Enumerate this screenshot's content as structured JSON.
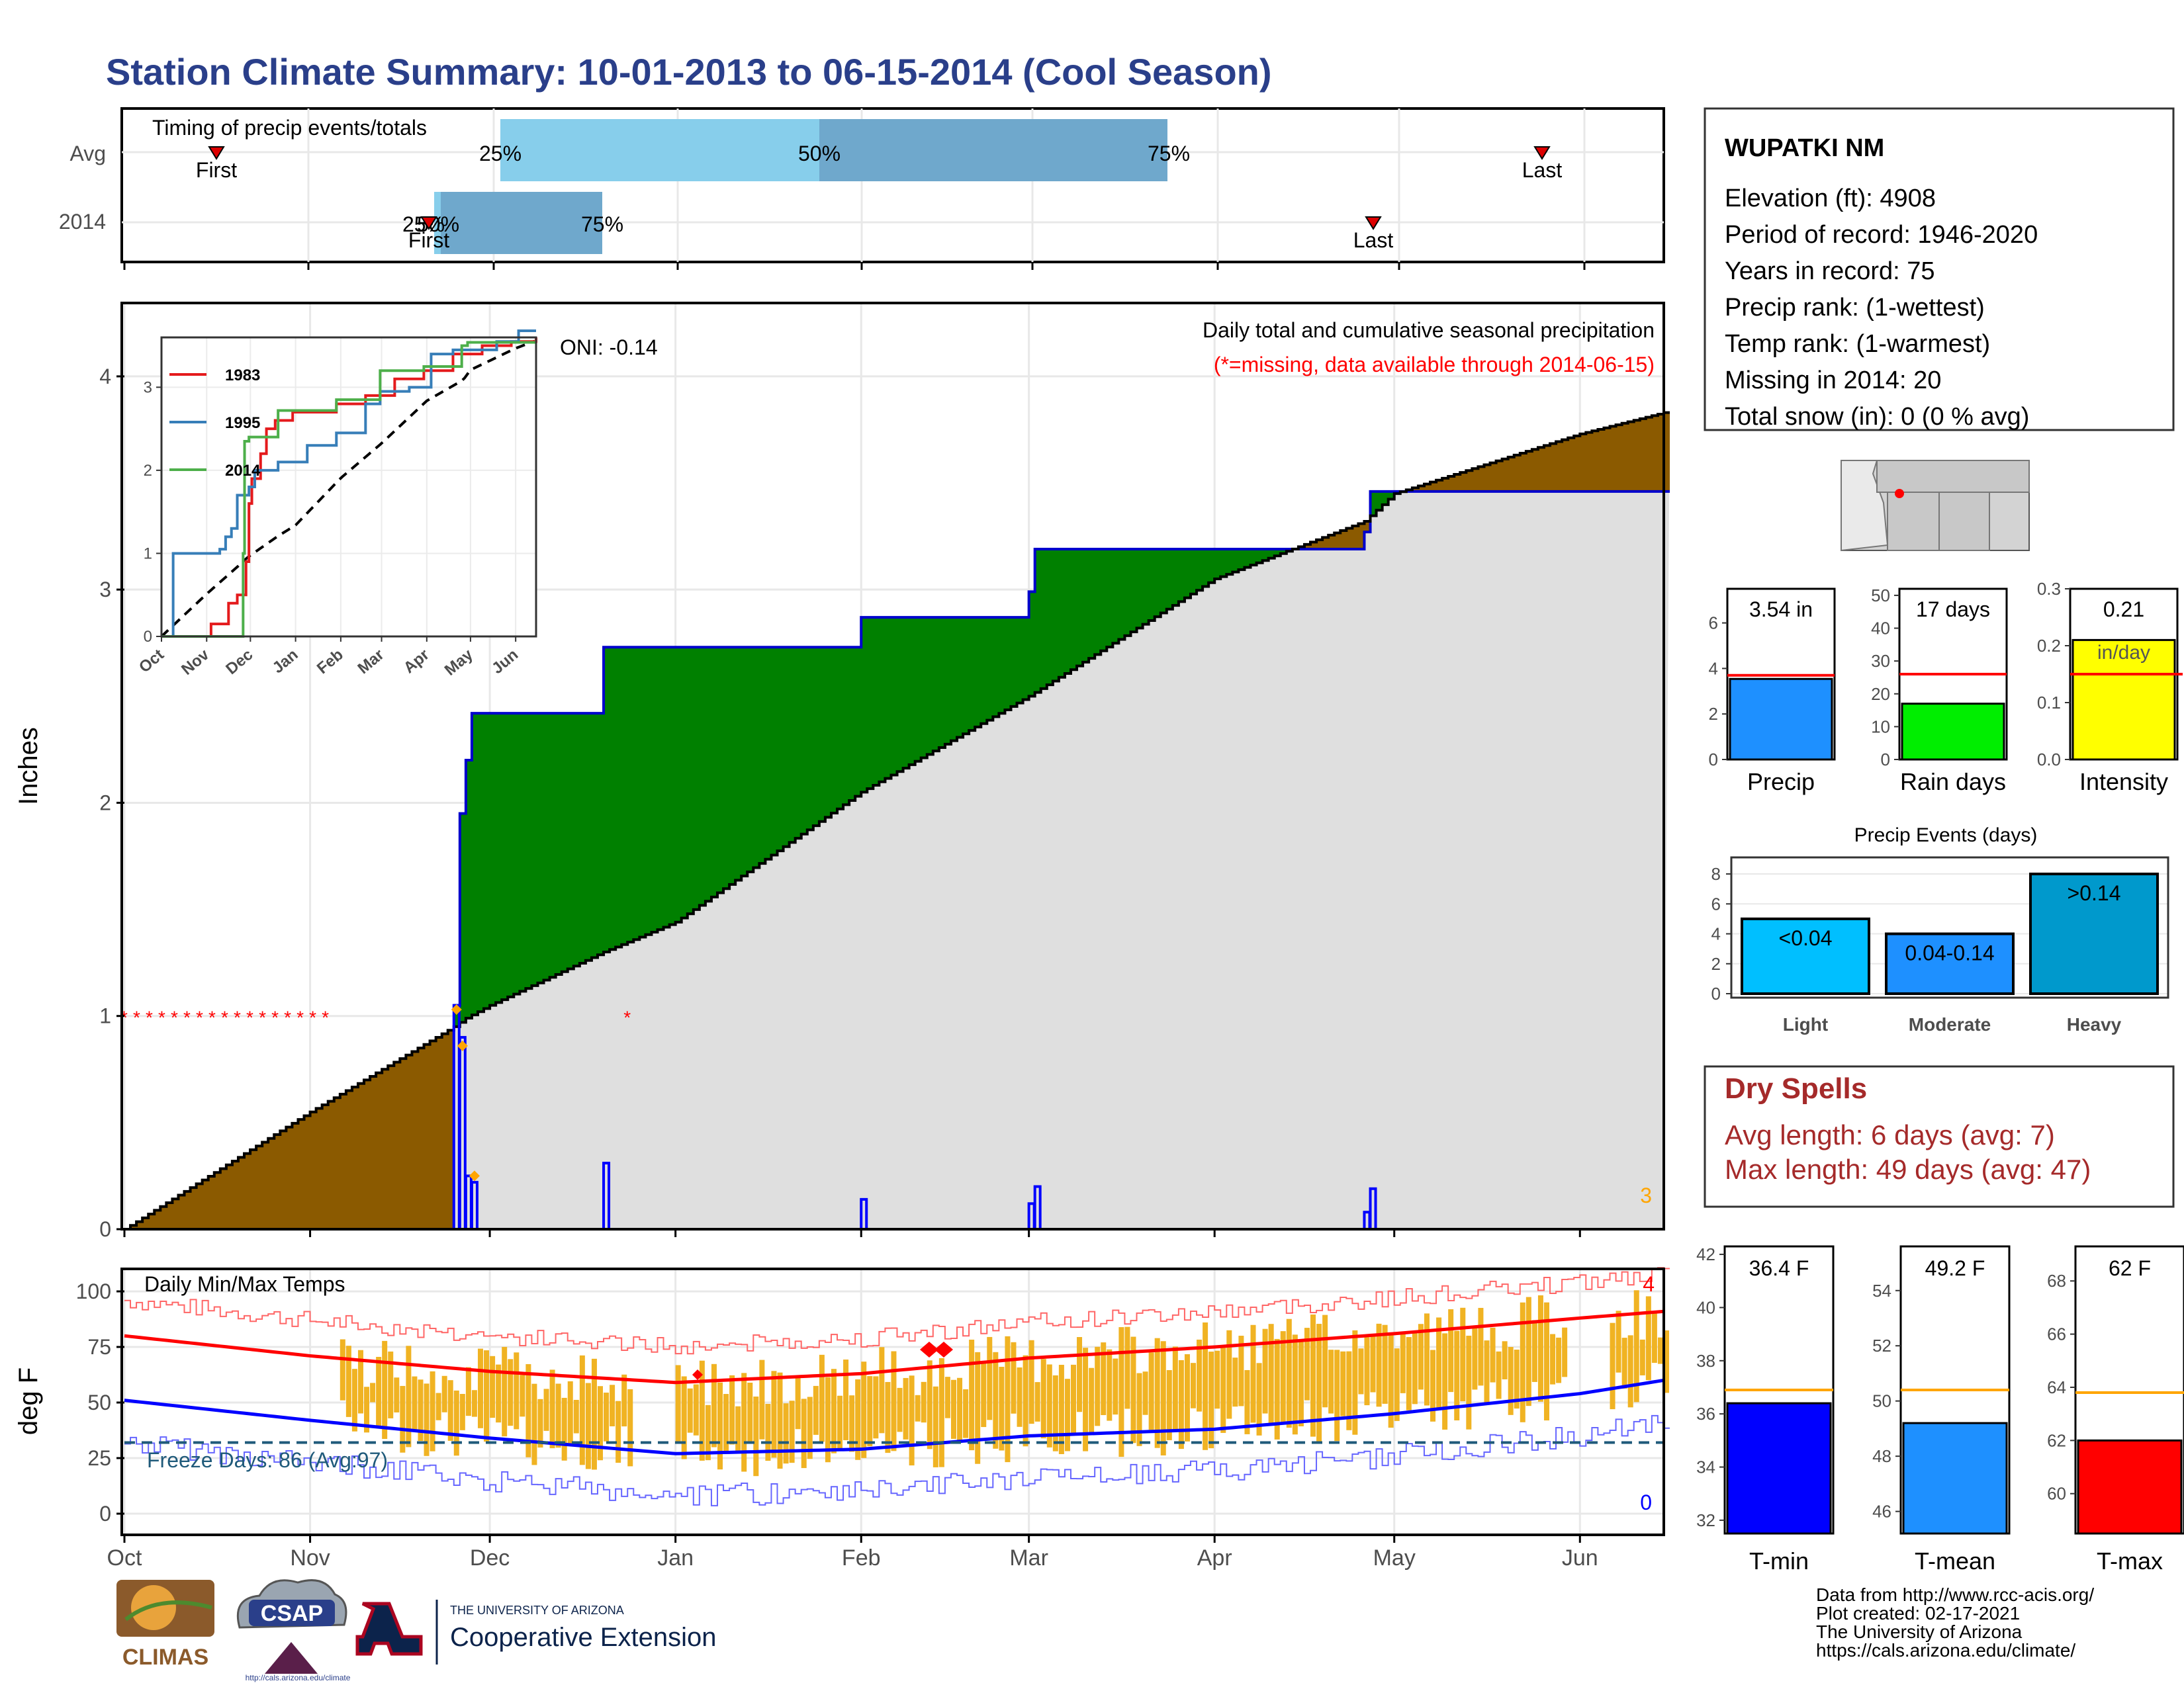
{
  "header": {
    "title": "Station Climate Summary: 10-01-2013 to 06-15-2014 (Cool Season)"
  },
  "colors": {
    "title": "#2a3f8a",
    "dry_spells": "#a52a2a",
    "above_avg_precip": "#008000",
    "below_avg_precip": "#8b5a00",
    "normal_precip": "#dfdfdf",
    "cumulative_line": "#0000cc",
    "daily_bars": "#0000ff",
    "missing": "#ff0000",
    "oni_marker": "#ffa500",
    "temp_bars": "#f0b323",
    "tmax_avg": "#ff0000",
    "tmin_avg": "#0000ff",
    "freeze_line": "#1f5a7a"
  },
  "timing": {
    "label": "Timing of precip events/totals",
    "rows": [
      "Avg",
      "2014"
    ],
    "avg": {
      "first_label": "First",
      "last_label": "Last",
      "p25": "25%",
      "p50": "50%",
      "p75": "75%"
    },
    "y2014": {
      "first_label": "First",
      "last_label": "Last",
      "p25": "25%",
      "p50": "50%",
      "p75": "75%"
    }
  },
  "main": {
    "ylabel": "Inches",
    "oni": "ONI: -0.14",
    "caption": "Daily total and cumulative seasonal precipitation",
    "missing_note": "(*=missing, data available through 2014-06-15)",
    "corner_value": "3",
    "yticks": [
      "0",
      "1",
      "2",
      "3",
      "4"
    ],
    "months": [
      "Oct",
      "Nov",
      "Dec",
      "Jan",
      "Feb",
      "Mar",
      "Apr",
      "May",
      "Jun"
    ]
  },
  "inset": {
    "series": [
      {
        "name": "1983",
        "color": "#e41a1c"
      },
      {
        "name": "1995",
        "color": "#377eb8"
      },
      {
        "name": "2014",
        "color": "#4daf4a"
      }
    ],
    "yticks": [
      "0",
      "1",
      "2",
      "3"
    ],
    "months": [
      "Oct",
      "Nov",
      "Dec",
      "Jan",
      "Feb",
      "Mar",
      "Apr",
      "May",
      "Jun"
    ]
  },
  "temps": {
    "label": "Daily Min/Max Temps",
    "ylabel": "deg F",
    "freeze_text": "Freeze Days: 86 (Avg:97)",
    "top_count": "4",
    "bottom_count": "0",
    "yticks": [
      "0",
      "25",
      "50",
      "75",
      "100"
    ]
  },
  "station": {
    "name": "WUPATKI NM",
    "lines": [
      "Elevation (ft): 4908",
      "Period of record: 1946-2020",
      "Years in record: 75",
      "Precip rank:  (1-wettest)",
      "Temp rank:  (1-warmest)",
      "Missing in 2014: 20",
      "Total snow (in): 0 (0 % avg)"
    ]
  },
  "mini_bars": [
    {
      "label": "Precip",
      "value_text": "3.54 in",
      "value": 3.54,
      "avg": 3.7,
      "ymax": 7.5,
      "ticks": [
        "0",
        "2",
        "4",
        "6"
      ],
      "tickvals": [
        0,
        2,
        4,
        6
      ],
      "color": "#1e90ff"
    },
    {
      "label": "Rain days",
      "value_text": "17 days",
      "value": 17,
      "avg": 26,
      "ymax": 52,
      "ticks": [
        "0",
        "10",
        "20",
        "30",
        "40",
        "50"
      ],
      "tickvals": [
        0,
        10,
        20,
        30,
        40,
        50
      ],
      "color": "#00ee00"
    },
    {
      "label": "Intensity",
      "value_text": "0.21",
      "sub_text": "in/day",
      "value": 0.21,
      "avg": 0.15,
      "ymax": 0.3,
      "ticks": [
        "0.0",
        "0.1",
        "0.2",
        "0.3"
      ],
      "tickvals": [
        0,
        0.1,
        0.2,
        0.3
      ],
      "color": "#ffff00"
    }
  ],
  "events": {
    "title": "Precip Events (days)",
    "bars": [
      {
        "label": "Light",
        "range": "<0.04",
        "value": 5
      },
      {
        "label": "Moderate",
        "range": "0.04-0.14",
        "value": 4
      },
      {
        "label": "Heavy",
        "range": ">0.14",
        "value": 8
      }
    ],
    "yticks": [
      "0",
      "2",
      "4",
      "6",
      "8"
    ],
    "color_light": "#00bfff",
    "color_moderate": "#1e90ff",
    "color_heavy": "#0099cc"
  },
  "dry_spells": {
    "title": "Dry Spells",
    "avg_line": "Avg length: 6 days (avg: 7)",
    "max_line": "Max length: 49 days (avg: 47)"
  },
  "temp_bars": [
    {
      "label": "T-min",
      "value_text": "36.4 F",
      "value": 36.4,
      "avg": 36.9,
      "ymin": 31.5,
      "ymax": 42.3,
      "ticks": [
        "32",
        "34",
        "36",
        "38",
        "40",
        "42"
      ],
      "tickvals": [
        32,
        34,
        36,
        38,
        40,
        42
      ],
      "color": "#0000ff"
    },
    {
      "label": "T-mean",
      "value_text": "49.2 F",
      "value": 49.2,
      "avg": 50.4,
      "ymin": 45.2,
      "ymax": 55.6,
      "ticks": [
        "46",
        "48",
        "50",
        "52",
        "54"
      ],
      "tickvals": [
        46,
        48,
        50,
        52,
        54
      ],
      "color": "#1e90ff"
    },
    {
      "label": "T-max",
      "value_text": "62 F",
      "value": 62,
      "avg": 63.8,
      "ymin": 58.5,
      "ymax": 69.3,
      "ticks": [
        "60",
        "62",
        "64",
        "66",
        "68"
      ],
      "tickvals": [
        60,
        62,
        64,
        66,
        68
      ],
      "color": "#ff0000"
    }
  ],
  "footer": {
    "lines": [
      "Data from http://www.rcc-acis.org/",
      "Plot created: 02-17-2021",
      "The University of Arizona",
      "https://cals.arizona.edu/climate/"
    ],
    "logos": {
      "climas": "CLIMAS",
      "csap": "CSAP",
      "csap_url": "http://cals.arizona.edu/climate",
      "ua_top": "THE UNIVERSITY OF ARIZONA",
      "ua_bottom": "Cooperative Extension"
    }
  },
  "chart_data": [
    {
      "type": "area",
      "title": "Daily total and cumulative seasonal precipitation",
      "ylabel": "Inches",
      "xlabel": "",
      "ylim": [
        0,
        4.2
      ],
      "x": [
        "2013-10-01",
        "2013-11-01",
        "2013-11-25",
        "2013-11-27",
        "2013-12-01",
        "2013-12-20",
        "2014-01-01",
        "2014-02-01",
        "2014-03-01",
        "2014-04-01",
        "2014-04-26",
        "2014-05-01",
        "2014-06-01",
        "2014-06-15"
      ],
      "series": [
        {
          "values": [
            null,
            null,
            0.0,
            1.05,
            2.36,
            2.72,
            2.72,
            2.85,
            3.2,
            3.2,
            3.54,
            3.54,
            3.54,
            3.54
          ]
        },
        {
          "values": [
            0.0,
            0.55,
            0.95,
            0.99,
            1.05,
            1.3,
            1.44,
            2.05,
            2.5,
            3.05,
            3.32,
            3.45,
            3.73,
            3.83
          ]
        }
      ],
      "daily_precip": {
        "dates": [
          "2013-11-25",
          "2013-11-26",
          "2013-11-27",
          "2013-11-28",
          "2013-12-20",
          "2014-02-01",
          "2014-03-01",
          "2014-03-02",
          "2014-04-26",
          "2014-04-27"
        ],
        "values": [
          1.05,
          0.9,
          0.25,
          0.22,
          0.31,
          0.14,
          0.12,
          0.2,
          0.08,
          0.19
        ]
      },
      "grid": true
    },
    {
      "type": "line",
      "title": "Daily Min/Max Temps",
      "ylabel": "deg F",
      "ylim": [
        -5,
        108
      ],
      "x": [
        "Oct",
        "Nov",
        "Dec",
        "Jan",
        "Feb",
        "Mar",
        "Apr",
        "May",
        "Jun",
        "Jun-15"
      ],
      "series": [
        {
          "name": "",
          "values": [
            80,
            71,
            64,
            59,
            63,
            70,
            75,
            81,
            88,
            91
          ]
        },
        {
          "name": "",
          "values": [
            51,
            42,
            34,
            27,
            29,
            35,
            38,
            45,
            54,
            60
          ]
        }
      ],
      "freeze_threshold": 32,
      "grid": true
    },
    {
      "type": "bar",
      "title": "Precip Events (days)",
      "categories": [
        "Light",
        "Moderate",
        "Heavy"
      ],
      "values": [
        5,
        4,
        8
      ],
      "ylim": [
        0,
        8.5
      ]
    }
  ]
}
